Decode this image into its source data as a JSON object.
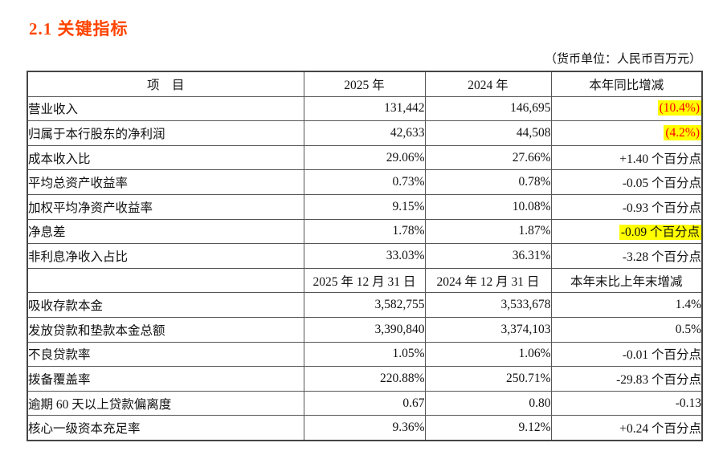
{
  "page": {
    "title": "2.1  关键指标",
    "unit_note": "（货币单位：人民币百万元）"
  },
  "colors": {
    "title_accent": "#ff4500",
    "highlight_bg": "#ffff00",
    "highlight_red_text": "#ff0000",
    "table_border": "#555555"
  },
  "table": {
    "sections": [
      {
        "header": [
          "项　目",
          "2025 年",
          "2024 年",
          "本年同比增减"
        ],
        "rows": [
          {
            "name": "营业收入",
            "v2025": "131,442",
            "v2024": "146,695",
            "change": "(10.4%)",
            "highlight": "red"
          },
          {
            "name": "归属于本行股东的净利润",
            "v2025": "42,633",
            "v2024": "44,508",
            "change": "(4.2%)",
            "highlight": "red"
          },
          {
            "name": "成本收入比",
            "v2025": "29.06%",
            "v2024": "27.66%",
            "change": "+1.40 个百分点",
            "highlight": null
          },
          {
            "name": "平均总资产收益率",
            "v2025": "0.73%",
            "v2024": "0.78%",
            "change": "-0.05 个百分点",
            "highlight": null
          },
          {
            "name": "加权平均净资产收益率",
            "v2025": "9.15%",
            "v2024": "10.08%",
            "change": "-0.93 个百分点",
            "highlight": null
          },
          {
            "name": "净息差",
            "v2025": "1.78%",
            "v2024": "1.87%",
            "change": "-0.09 个百分点",
            "highlight": "yellow"
          },
          {
            "name": "非利息净收入占比",
            "v2025": "33.03%",
            "v2024": "36.31%",
            "change": "-3.28 个百分点",
            "highlight": null
          }
        ]
      },
      {
        "header": [
          "",
          "2025 年 12 月 31 日",
          "2024 年 12 月 31 日",
          "本年末比上年末增减"
        ],
        "rows": [
          {
            "name": "吸收存款本金",
            "v2025": "3,582,755",
            "v2024": "3,533,678",
            "change": "1.4%",
            "highlight": null
          },
          {
            "name": "发放贷款和垫款本金总额",
            "v2025": "3,390,840",
            "v2024": "3,374,103",
            "change": "0.5%",
            "highlight": null
          },
          {
            "name": "不良贷款率",
            "v2025": "1.05%",
            "v2024": "1.06%",
            "change": "-0.01 个百分点",
            "highlight": null
          },
          {
            "name": "拨备覆盖率",
            "v2025": "220.88%",
            "v2024": "250.71%",
            "change": "-29.83 个百分点",
            "highlight": null
          },
          {
            "name": "逾期 60 天以上贷款偏离度",
            "v2025": "0.67",
            "v2024": "0.80",
            "change": "-0.13",
            "highlight": null
          },
          {
            "name": "核心一级资本充足率",
            "v2025": "9.36%",
            "v2024": "9.12%",
            "change": "+0.24 个百分点",
            "highlight": null
          }
        ]
      }
    ]
  }
}
